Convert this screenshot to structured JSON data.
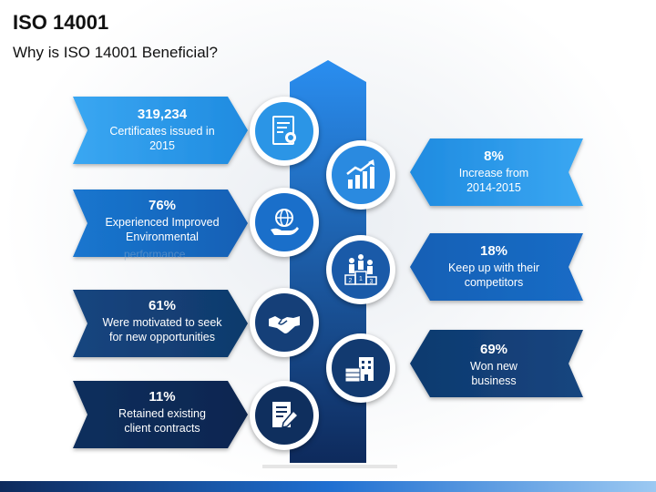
{
  "header": {
    "title": "ISO 14001",
    "subtitle": "Why is ISO 14001 Beneficial?"
  },
  "colors": {
    "light_blue": "#2f9ae8",
    "mid_blue": "#1b6fc8",
    "dark_blue": "#123f78",
    "navy": "#0d2b57",
    "spine_top": "#2a8ef0",
    "spine_bottom": "#0e2a5c"
  },
  "left_items": [
    {
      "value": "319,234",
      "line1": "Certificates issued in",
      "line2": "2015",
      "icon": "certificate-icon"
    },
    {
      "value": "76%",
      "line1": "Experienced Improved",
      "line2": "Environmental",
      "icon": "globe-hand-icon"
    },
    {
      "value": "61%",
      "line1": "Were motivated to seek",
      "line2": "for new opportunities",
      "icon": "handshake-icon"
    },
    {
      "value": "11%",
      "line1": "Retained existing",
      "line2": "client contracts",
      "icon": "document-pen-icon"
    }
  ],
  "right_items": [
    {
      "value": "8%",
      "line1": "Increase  from",
      "line2": "2014-2015",
      "icon": "growth-chart-icon"
    },
    {
      "value": "18%",
      "line1": "Keep up with their",
      "line2": "competitors",
      "icon": "podium-icon"
    },
    {
      "value": "69%",
      "line1": "Won new",
      "line2": "business",
      "icon": "money-building-icon"
    }
  ],
  "ghost_text": "performance",
  "podium_numbers": [
    "2",
    "1",
    "3"
  ]
}
